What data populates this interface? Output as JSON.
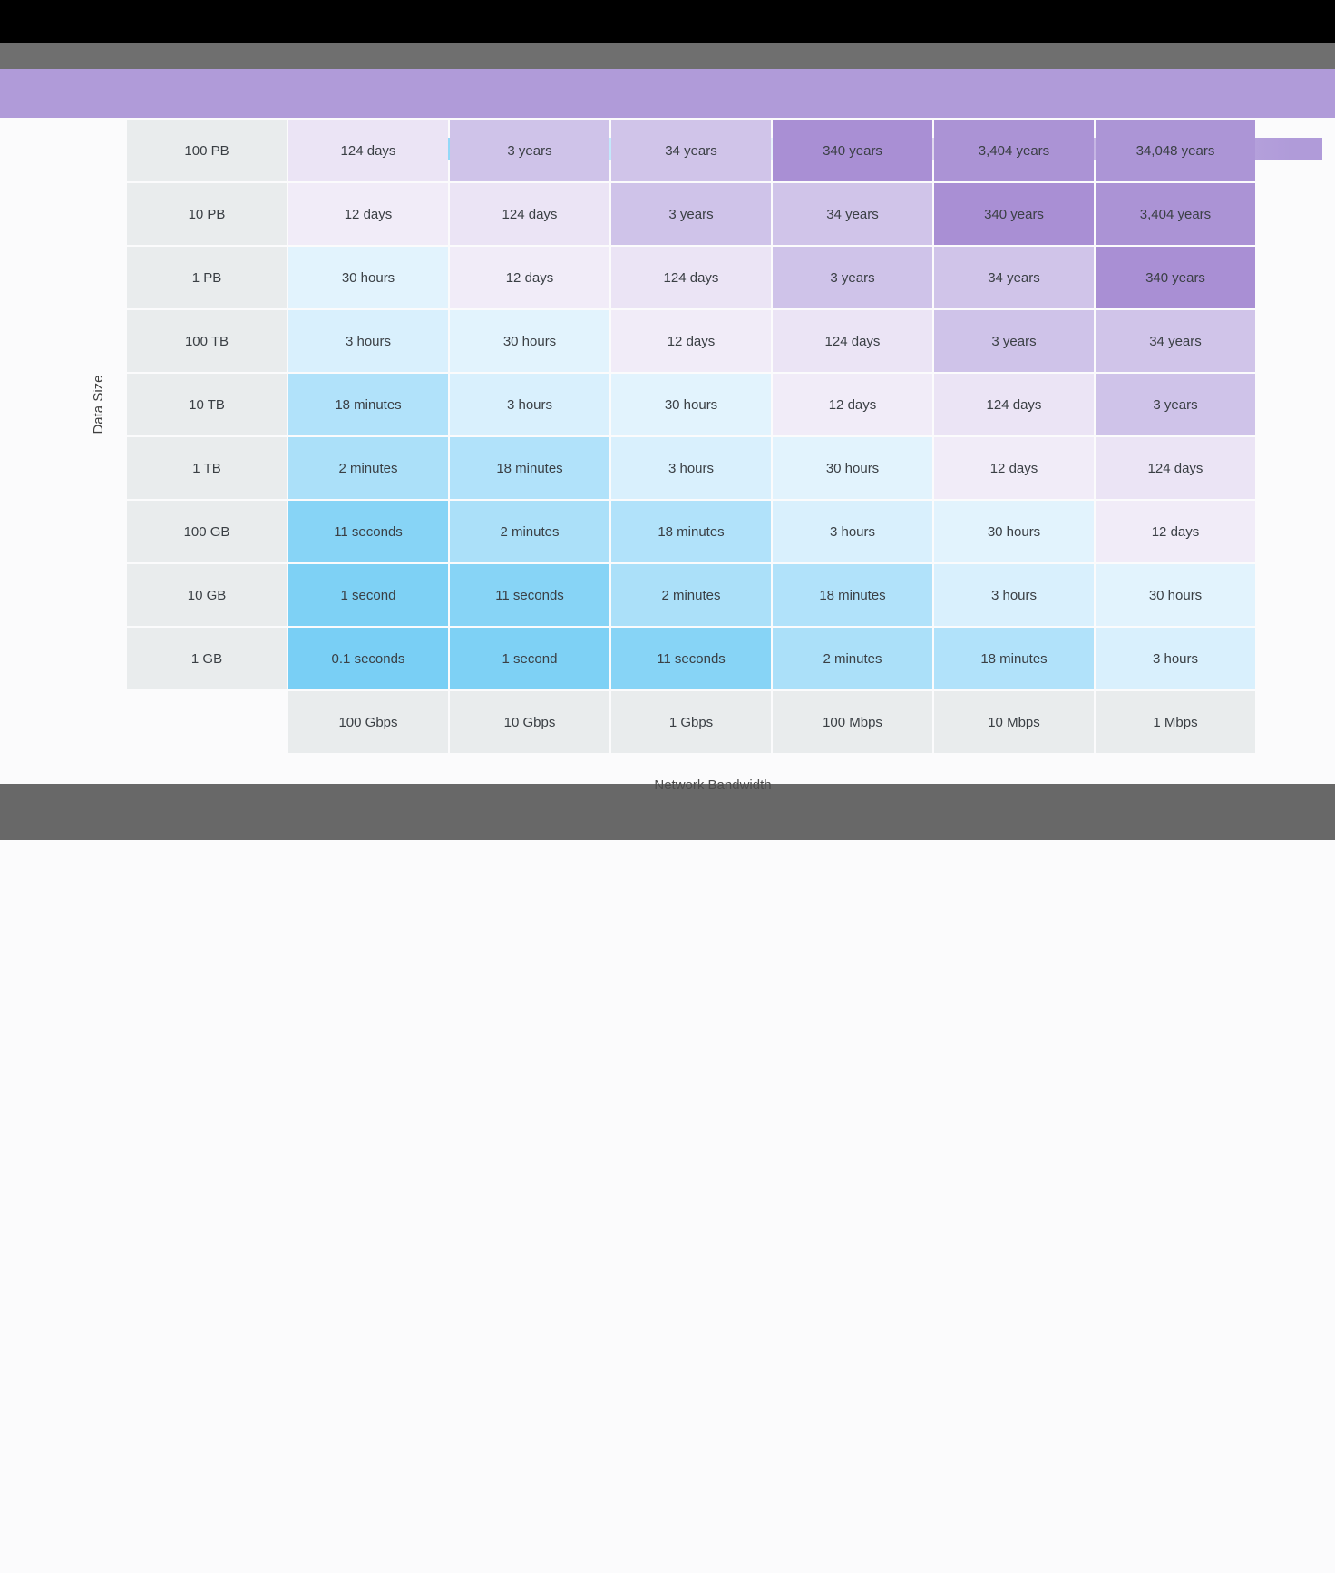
{
  "axes": {
    "y_label": "Data Size",
    "x_label": "Network Bandwidth"
  },
  "colors": {
    "header_band": "#b09bd9",
    "legend_gradient_start": "#68c8f3",
    "legend_gradient_mid": "#eef3fa",
    "legend_gradient_end": "#b09bd9",
    "label_cell": "#e9eced",
    "cell_text": "#3a3f44"
  },
  "chart_data": {
    "type": "heatmap",
    "title": "",
    "xlabel": "Network Bandwidth",
    "ylabel": "Data Size",
    "legend_position": "top",
    "col_labels": [
      "100 Gbps",
      "10 Gbps",
      "1 Gbps",
      "100 Mbps",
      "10 Mbps",
      "1 Mbps"
    ],
    "row_labels": [
      "100 PB",
      "10 PB",
      "1 PB",
      "100 TB",
      "10 TB",
      "1 TB",
      "100 GB",
      "10 GB",
      "1 GB"
    ],
    "cells": [
      [
        "124 days",
        "3 years",
        "34 years",
        "340 years",
        "3,404 years",
        "34,048 years"
      ],
      [
        "12 days",
        "124 days",
        "3 years",
        "34 years",
        "340 years",
        "3,404 years"
      ],
      [
        "30 hours",
        "12 days",
        "124 days",
        "3 years",
        "34 years",
        "340 years"
      ],
      [
        "3 hours",
        "30 hours",
        "12 days",
        "124 days",
        "3 years",
        "34 years"
      ],
      [
        "18 minutes",
        "3 hours",
        "30 hours",
        "12 days",
        "124 days",
        "3 years"
      ],
      [
        "2 minutes",
        "18 minutes",
        "3 hours",
        "30 hours",
        "12 days",
        "124 days"
      ],
      [
        "11 seconds",
        "2 minutes",
        "18 minutes",
        "3 hours",
        "30 hours",
        "12 days"
      ],
      [
        "1 second",
        "11 seconds",
        "2 minutes",
        "18 minutes",
        "3 hours",
        "30 hours"
      ],
      [
        "0.1 seconds",
        "1 second",
        "11 seconds",
        "2 minutes",
        "18 minutes",
        "3 hours"
      ]
    ],
    "value_colors": {
      "0.1 seconds": "#79cff5",
      "1 second": "#7ed1f5",
      "11 seconds": "#87d4f6",
      "2 minutes": "#abe0f9",
      "18 minutes": "#b1e2fa",
      "3 hours": "#d9f0fd",
      "30 hours": "#e2f3fd",
      "12 days": "#f1ecf8",
      "124 days": "#ebe4f5",
      "3 years": "#cfc3e9",
      "34 years": "#d0c4e9",
      "340 years": "#a98fd4",
      "3,404 years": "#ab93d5",
      "34,048 years": "#ac95d6"
    }
  }
}
